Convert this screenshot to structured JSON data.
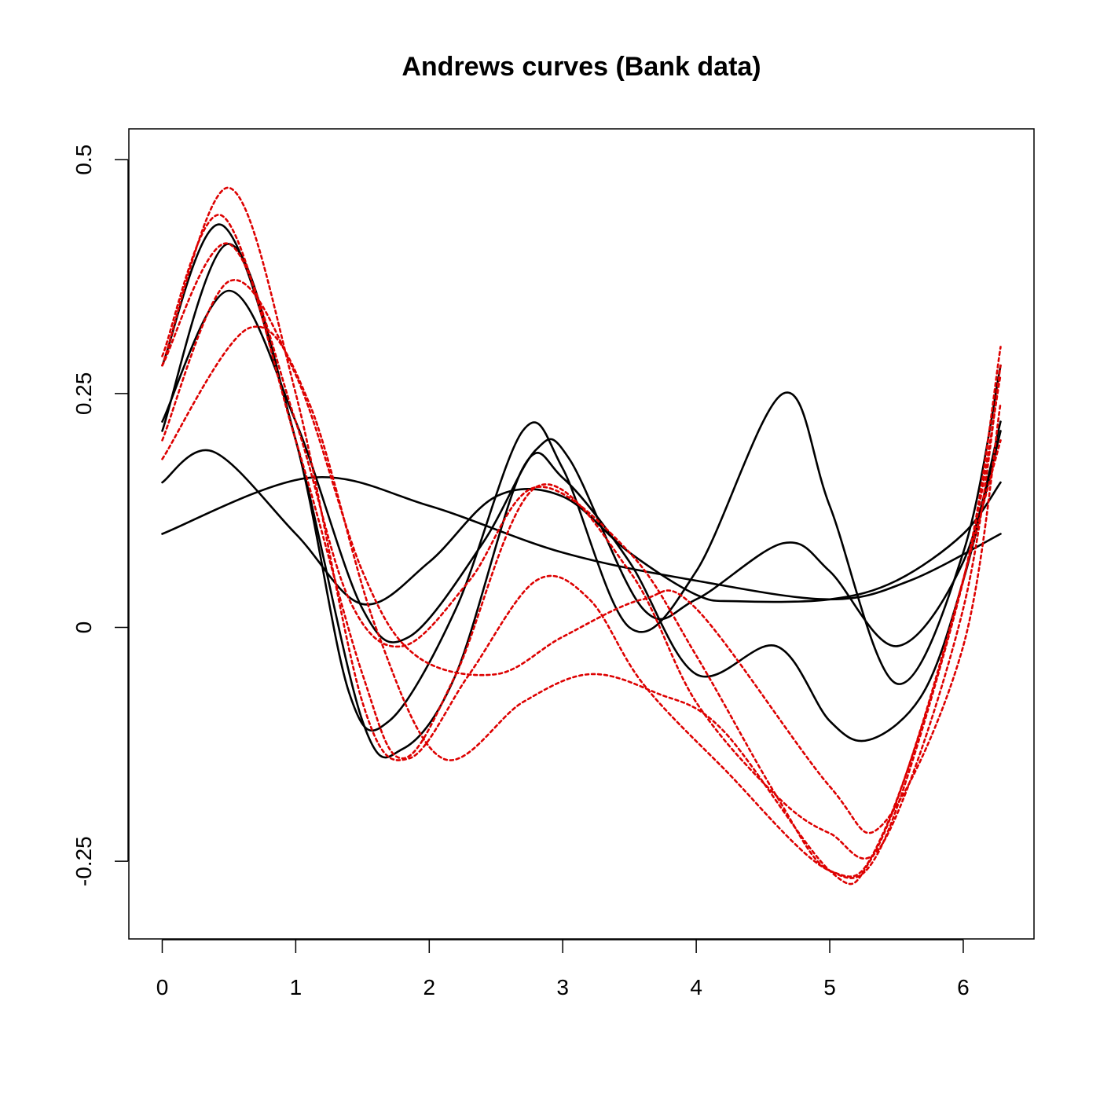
{
  "chart_data": {
    "type": "line",
    "title": "Andrews curves (Bank data)",
    "xlabel": "",
    "ylabel": "",
    "xlim": [
      -0.25,
      6.53
    ],
    "ylim": [
      -0.333,
      0.533
    ],
    "x_ticks": [
      0,
      1,
      2,
      3,
      4,
      5,
      6
    ],
    "x_tick_labels": [
      "0",
      "1",
      "2",
      "3",
      "4",
      "5",
      "6"
    ],
    "y_ticks": [
      -0.25,
      0,
      0.25,
      0.5
    ],
    "y_tick_labels": [
      "-0.25",
      "0",
      "0.25",
      "0.5"
    ],
    "grid": false,
    "legend": "none",
    "colors": {
      "group1": "#000000",
      "group2": "#dd0000"
    },
    "series": [
      {
        "group": "group1",
        "style": "solid",
        "x": [
          0,
          0.5,
          1,
          1.5,
          1.8,
          2.2,
          2.7,
          3.0,
          3.5,
          4.0,
          4.6,
          5.0,
          5.3,
          5.7,
          6.0,
          6.28
        ],
        "y": [
          0.21,
          0.41,
          0.2,
          -0.1,
          -0.13,
          -0.05,
          0.17,
          0.16,
          0.07,
          -0.05,
          -0.02,
          -0.1,
          -0.12,
          -0.07,
          0.05,
          0.21
        ]
      },
      {
        "group": "group1",
        "style": "solid",
        "x": [
          0,
          0.45,
          1,
          1.4,
          1.7,
          2.2,
          2.7,
          3.0,
          3.5,
          4.0,
          4.65,
          5.0,
          5.5,
          6.0,
          6.28
        ],
        "y": [
          0.28,
          0.43,
          0.2,
          -0.07,
          -0.1,
          0.02,
          0.21,
          0.17,
          0.0,
          0.06,
          0.25,
          0.13,
          -0.06,
          0.08,
          0.28
        ]
      },
      {
        "group": "group1",
        "style": "solid",
        "x": [
          0,
          0.5,
          1,
          1.5,
          1.85,
          2.4,
          2.8,
          3.05,
          3.6,
          4.0,
          4.65,
          5.0,
          5.5,
          6.0,
          6.28
        ],
        "y": [
          0.22,
          0.36,
          0.22,
          0.02,
          -0.01,
          0.09,
          0.19,
          0.18,
          0.02,
          0.03,
          0.09,
          0.06,
          -0.02,
          0.07,
          0.22
        ]
      },
      {
        "group": "group1",
        "style": "solid",
        "x": [
          0,
          0.38,
          1,
          1.5,
          2.0,
          2.5,
          3.0,
          3.5,
          4.0,
          4.3,
          5.0,
          5.5,
          6.0,
          6.28
        ],
        "y": [
          0.155,
          0.188,
          0.1,
          0.025,
          0.07,
          0.14,
          0.14,
          0.08,
          0.035,
          0.028,
          0.03,
          0.05,
          0.1,
          0.155
        ]
      },
      {
        "group": "group1",
        "style": "solid",
        "x": [
          0,
          1.1,
          2.0,
          3.0,
          4.0,
          5.0,
          5.6,
          6.28
        ],
        "y": [
          0.1,
          0.16,
          0.13,
          0.08,
          0.05,
          0.03,
          0.05,
          0.1
        ]
      },
      {
        "group": "group2",
        "style": "dotted",
        "x": [
          0,
          0.5,
          1,
          1.5,
          1.85,
          2.3,
          2.8,
          3.2,
          3.6,
          4.2,
          5.0,
          5.4,
          6.0,
          6.28
        ],
        "y": [
          0.28,
          0.47,
          0.25,
          -0.08,
          -0.14,
          -0.05,
          0.05,
          0.03,
          -0.06,
          -0.15,
          -0.26,
          -0.22,
          0.05,
          0.3
        ]
      },
      {
        "group": "group2",
        "style": "dotted",
        "x": [
          0,
          0.45,
          1,
          1.5,
          1.8,
          2.2,
          2.8,
          3.5,
          4.0,
          4.6,
          5.0,
          5.4,
          6.0,
          6.28
        ],
        "y": [
          0.29,
          0.44,
          0.2,
          -0.05,
          -0.14,
          -0.05,
          0.15,
          0.06,
          -0.08,
          -0.18,
          -0.22,
          -0.23,
          0.02,
          0.28
        ]
      },
      {
        "group": "group2",
        "style": "dotted",
        "x": [
          0,
          0.5,
          1,
          1.4,
          1.8,
          2.3,
          2.8,
          3.5,
          4.0,
          4.6,
          5.0,
          5.4,
          6.0,
          6.28
        ],
        "y": [
          0.28,
          0.41,
          0.22,
          0.03,
          -0.02,
          0.05,
          0.15,
          0.08,
          -0.03,
          -0.18,
          -0.26,
          -0.23,
          0.05,
          0.27
        ]
      },
      {
        "group": "group2",
        "style": "dotted",
        "x": [
          0,
          0.5,
          1,
          1.5,
          1.9,
          2.5,
          3.0,
          3.6,
          4.0,
          5.0,
          5.4,
          6.0,
          6.28
        ],
        "y": [
          0.2,
          0.37,
          0.27,
          0.06,
          -0.03,
          -0.05,
          -0.01,
          0.03,
          0.02,
          -0.17,
          -0.21,
          -0.02,
          0.24
        ]
      },
      {
        "group": "group2",
        "style": "dotted",
        "x": [
          0,
          0.65,
          1.1,
          1.6,
          2.1,
          2.7,
          3.2,
          3.7,
          4.2,
          5.0,
          5.3,
          5.7,
          6.28
        ],
        "y": [
          0.18,
          0.32,
          0.24,
          0.0,
          -0.14,
          -0.08,
          -0.05,
          -0.07,
          -0.11,
          -0.26,
          -0.25,
          -0.1,
          0.2
        ]
      }
    ]
  }
}
